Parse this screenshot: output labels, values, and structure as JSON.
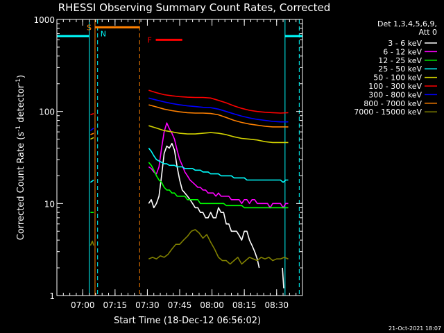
{
  "chart_data": {
    "type": "line",
    "title": "RHESSI Observing Summary Count Rates, Corrected",
    "xlabel": "Start Time (18-Dec-12 06:56:02)",
    "ylabel_main": "Corrected Count Rate (s",
    "ylabel_sup1": "-1",
    "ylabel_mid": " detector",
    "ylabel_sup2": "-1",
    "ylabel_end": ")",
    "yscale": "log",
    "ylim": [
      1,
      1000
    ],
    "xlim_minutes": [
      0,
      38
    ],
    "x_ticks": [
      {
        "label": "07:00",
        "value": 4
      },
      {
        "label": "07:15",
        "value": 9
      },
      {
        "label": "07:30",
        "value": 14
      },
      {
        "label": "07:45",
        "value": 19
      },
      {
        "label": "08:00",
        "value": 24
      },
      {
        "label": "08:15",
        "value": 29
      },
      {
        "label": "08:30",
        "value": 34
      }
    ],
    "y_ticks": [
      {
        "label": "1",
        "value": 1
      },
      {
        "label": "10",
        "value": 10
      },
      {
        "label": "100",
        "value": 100
      },
      {
        "label": "1000",
        "value": 1000
      }
    ],
    "legend_header": [
      "Det 1,3,4,5,6,9,",
      "Att 0"
    ],
    "legend_placement": "right",
    "series": [
      {
        "name": "3 - 6 keV",
        "color": "#ffffff",
        "segments": [
          {
            "x": [
              14.2,
              14.6,
              15.0,
              15.4,
              15.8,
              16.2,
              16.6,
              17.0,
              17.4,
              17.8,
              18.2,
              18.6,
              19.0,
              19.4,
              19.8,
              20.2,
              20.6,
              21.0,
              21.4,
              21.8,
              22.2,
              22.6,
              23.0,
              23.4,
              23.8,
              24.2,
              24.6,
              25.0,
              25.4,
              25.8,
              26.2,
              26.6,
              27.0,
              27.4,
              27.8,
              28.2,
              28.6,
              29.0,
              29.4,
              29.8,
              30.2,
              30.6,
              31.0,
              31.3
            ],
            "y": [
              10,
              11,
              9,
              10,
              12,
              20,
              35,
              42,
              40,
              45,
              38,
              25,
              18,
              14,
              13,
              12,
              11,
              10,
              9,
              9,
              8,
              8,
              7,
              7,
              8,
              7,
              7,
              9,
              8,
              8,
              6,
              6,
              5,
              5,
              5,
              4.5,
              4,
              5,
              5,
              4,
              3.5,
              3,
              2.5,
              2
            ]
          },
          {
            "x": [
              34.9,
              35.1
            ],
            "y": [
              2,
              1.2
            ]
          }
        ]
      },
      {
        "name": "6 - 12 keV",
        "color": "#ff00ff",
        "segments": [
          {
            "x": [
              14.2,
              14.6,
              15.0,
              15.4,
              15.8,
              16.2,
              16.6,
              17.0,
              17.4,
              17.8,
              18.2,
              18.6,
              19.0,
              19.4,
              19.8,
              20.2,
              20.6,
              21.0,
              21.4,
              21.8,
              22.2,
              22.6,
              23.0,
              23.4,
              23.8,
              24.2,
              24.6,
              25.0,
              25.4,
              25.8,
              26.2,
              26.6,
              27.0,
              27.4,
              27.8,
              28.2,
              28.6,
              29.0,
              29.4,
              29.8,
              30.2,
              30.6,
              31.0,
              31.4,
              31.8,
              32.2,
              32.6,
              33.0,
              33.4,
              33.8,
              34.2,
              34.6,
              35.0,
              35.4,
              35.8
            ],
            "y": [
              25,
              24,
              22,
              21,
              25,
              40,
              60,
              75,
              65,
              58,
              50,
              38,
              30,
              26,
              22,
              20,
              18,
              17,
              16,
              15,
              15,
              14,
              14,
              13,
              13,
              13,
              12,
              13,
              12,
              12,
              12,
              12,
              11,
              11,
              11,
              11,
              10,
              11,
              11,
              10,
              11,
              11,
              10,
              10,
              10,
              10,
              10,
              9,
              10,
              10,
              10,
              10,
              9,
              10,
              10
            ]
          }
        ]
      },
      {
        "name": "12 - 25 keV",
        "color": "#00ff00",
        "segments": [
          {
            "x": [
              5.2,
              5.7
            ],
            "y": [
              8,
              8
            ]
          },
          {
            "x": [
              14.2,
              14.6,
              15.0,
              15.4,
              15.8,
              16.2,
              16.6,
              17.0,
              17.4,
              17.8,
              18.2,
              18.6,
              19.0,
              19.4,
              19.8,
              20.2,
              20.6,
              21.0,
              21.4,
              21.8,
              22.2,
              22.6,
              23.0,
              23.4,
              23.8,
              24.2,
              24.6,
              25.0,
              25.4,
              25.8,
              26.2,
              26.6,
              27.0,
              27.4,
              27.8,
              28.2,
              28.6,
              29.0,
              29.4,
              29.8,
              30.2,
              30.6,
              31.0,
              31.4,
              31.8,
              32.2,
              32.6,
              33.0,
              33.4,
              33.8,
              34.2,
              34.6,
              35.0,
              35.4,
              35.8
            ],
            "y": [
              28,
              26,
              23,
              20,
              18,
              17,
              15,
              14,
              14,
              13,
              13,
              12,
              12,
              12,
              12,
              11,
              11,
              11,
              11,
              11,
              10,
              10,
              10,
              10,
              10,
              10,
              10,
              10,
              10,
              10,
              9.5,
              9.5,
              9.5,
              9.5,
              9.5,
              9.5,
              9.5,
              9,
              9,
              9,
              9,
              9,
              9,
              9,
              9,
              9,
              9,
              9,
              9,
              9,
              9,
              9,
              9,
              9,
              9
            ]
          }
        ]
      },
      {
        "name": "25 - 50 keV",
        "color": "#00ffff",
        "segments": [
          {
            "x": [
              5.2,
              5.7
            ],
            "y": [
              17,
              18
            ]
          },
          {
            "x": [
              14.2,
              14.6,
              15.0,
              15.4,
              15.8,
              16.2,
              16.6,
              17.0,
              17.4,
              17.8,
              18.2,
              18.6,
              19.0,
              19.4,
              19.8,
              20.2,
              20.6,
              21.0,
              21.4,
              21.8,
              22.2,
              22.6,
              23.0,
              23.4,
              23.8,
              24.2,
              24.6,
              25.0,
              25.4,
              25.8,
              26.2,
              26.6,
              27.0,
              27.4,
              27.8,
              28.2,
              28.6,
              29.0,
              29.4,
              29.8,
              30.2,
              30.6,
              31.0,
              31.4,
              31.8,
              32.2,
              32.6,
              33.0,
              33.4,
              33.8,
              34.2,
              34.6,
              35.0,
              35.4,
              35.8
            ],
            "y": [
              40,
              37,
              33,
              30,
              29,
              28,
              27,
              27,
              26,
              26,
              26,
              25,
              25,
              25,
              24,
              24,
              24,
              24,
              23,
              23,
              23,
              22,
              22,
              22,
              21,
              21,
              21,
              21,
              20,
              20,
              20,
              20,
              20,
              19,
              19,
              19,
              19,
              19,
              18,
              18,
              18,
              18,
              18,
              18,
              18,
              18,
              18,
              18,
              18,
              18,
              18,
              18,
              17,
              18,
              18
            ]
          }
        ]
      },
      {
        "name": "50 - 100 keV",
        "color": "#d2d200",
        "segments": [
          {
            "x": [
              5.2,
              5.7
            ],
            "y": [
              50,
              52
            ]
          },
          {
            "x": [
              14.2,
              15.4,
              16.6,
              17.8,
              19.0,
              20.2,
              21.4,
              22.6,
              23.8,
              25.0,
              26.2,
              27.4,
              28.6,
              29.8,
              31.0,
              32.2,
              33.4,
              34.6,
              35.8
            ],
            "y": [
              70,
              66,
              62,
              60,
              58,
              57,
              57,
              58,
              59,
              58,
              56,
              53,
              51,
              50,
              49,
              47,
              46,
              46,
              46
            ]
          }
        ]
      },
      {
        "name": "100 - 300 keV",
        "color": "#ff0000",
        "segments": [
          {
            "x": [
              5.2,
              5.7
            ],
            "y": [
              92,
              95
            ]
          },
          {
            "x": [
              14.2,
              15.4,
              16.6,
              17.8,
              19.0,
              20.2,
              21.4,
              22.6,
              23.8,
              25.0,
              26.2,
              27.4,
              28.6,
              29.8,
              31.0,
              32.2,
              33.4,
              34.6,
              35.8
            ],
            "y": [
              170,
              160,
              152,
              148,
              145,
              143,
              142,
              142,
              140,
              132,
              124,
              115,
              108,
              103,
              100,
              98,
              97,
              96,
              97
            ]
          }
        ]
      },
      {
        "name": "300 - 800 keV",
        "color": "#0000ff",
        "segments": [
          {
            "x": [
              5.2,
              5.7
            ],
            "y": [
              62,
              66
            ]
          },
          {
            "x": [
              14.2,
              15.4,
              16.6,
              17.8,
              19.0,
              20.2,
              21.4,
              22.6,
              23.8,
              25.0,
              26.2,
              27.4,
              28.6,
              29.8,
              31.0,
              32.2,
              33.4,
              34.6,
              35.8
            ],
            "y": [
              140,
              133,
              127,
              122,
              118,
              115,
              113,
              111,
              110,
              106,
              100,
              94,
              89,
              85,
              82,
              80,
              78,
              77,
              77
            ]
          }
        ]
      },
      {
        "name": "800 - 7000 keV",
        "color": "#ff8000",
        "segments": [
          {
            "x": [
              5.2,
              5.7
            ],
            "y": [
              56,
              58
            ]
          },
          {
            "x": [
              14.2,
              15.4,
              16.6,
              17.8,
              19.0,
              20.2,
              21.4,
              22.6,
              23.8,
              25.0,
              26.2,
              27.4,
              28.6,
              29.8,
              31.0,
              32.2,
              33.4,
              34.6,
              35.8
            ],
            "y": [
              118,
              112,
              106,
              102,
              99,
              97,
              96,
              96,
              95,
              92,
              86,
              80,
              76,
              73,
              71,
              69,
              68,
              68,
              68
            ]
          }
        ]
      },
      {
        "name": "7000 - 15000 keV",
        "color": "#808000",
        "segments": [
          {
            "x": [
              5.2,
              5.5,
              5.7
            ],
            "y": [
              3.5,
              3.9,
              3.5
            ]
          },
          {
            "x": [
              14.2,
              14.8,
              15.4,
              16.0,
              16.6,
              17.2,
              17.8,
              18.4,
              19.0,
              19.6,
              20.2,
              20.8,
              21.4,
              22.0,
              22.6,
              23.2,
              23.8,
              24.4,
              25.0,
              25.6,
              26.2,
              26.8,
              27.4,
              28.0,
              28.6,
              29.2,
              29.8,
              30.4,
              31.0,
              31.6,
              32.2,
              32.8,
              33.4,
              34.0,
              34.6,
              35.2,
              35.8
            ],
            "y": [
              2.5,
              2.6,
              2.5,
              2.7,
              2.6,
              2.8,
              3.2,
              3.6,
              3.6,
              4.0,
              4.4,
              5.0,
              5.2,
              4.8,
              4.2,
              4.6,
              3.8,
              3.2,
              2.6,
              2.4,
              2.4,
              2.2,
              2.4,
              2.6,
              2.2,
              2.4,
              2.6,
              2.5,
              2.4,
              2.6,
              2.5,
              2.6,
              2.4,
              2.5,
              2.5,
              2.6,
              2.5
            ]
          }
        ]
      }
    ],
    "annotations": [
      {
        "label": "S",
        "color": "#ff8000",
        "x_start": 5.9,
        "x_end": 12.8,
        "y": 820
      },
      {
        "label": "N",
        "color": "#00ffff",
        "x": 6.3,
        "y": 700
      },
      {
        "label": "F",
        "color": "#ff0000",
        "x_start": 15.3,
        "x_end": 19.4,
        "y": 600
      }
    ],
    "attenuator_level": {
      "color": "#00ffff",
      "y": 660,
      "ranges": [
        [
          0,
          5.0
        ],
        [
          35.3,
          38
        ]
      ]
    },
    "vertical_markers": [
      {
        "x": 5.0,
        "color": "#00ffff",
        "style": "solid"
      },
      {
        "x": 5.9,
        "color": "#ff8000",
        "style": "solid"
      },
      {
        "x": 6.3,
        "color": "#00ffff",
        "style": "dashed"
      },
      {
        "x": 12.8,
        "color": "#ff8000",
        "style": "dashed"
      },
      {
        "x": 35.3,
        "color": "#00ffff",
        "style": "solid"
      },
      {
        "x": 37.5,
        "color": "#00ffff",
        "style": "dashed"
      }
    ]
  },
  "footer": {
    "timestamp": "21-Oct-2021 18:07"
  }
}
